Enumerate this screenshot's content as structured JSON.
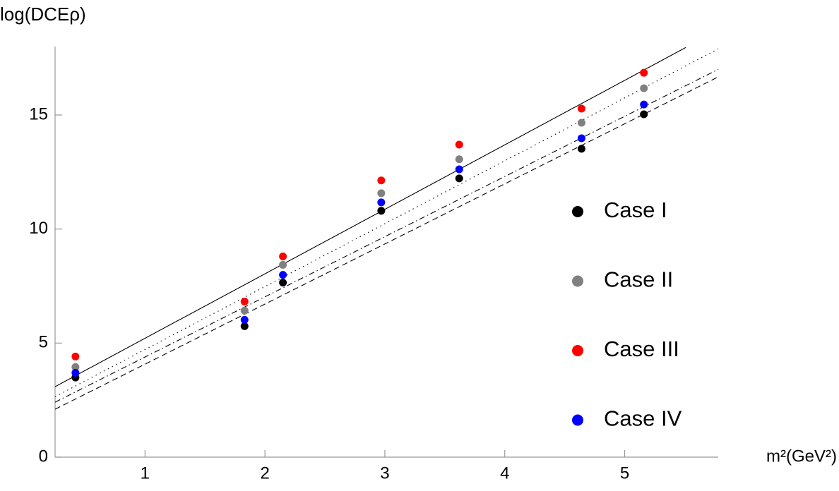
{
  "chart_data": {
    "type": "scatter",
    "ylabel": "log(DCEρ)",
    "xlabel": "m²(GeV²)",
    "xlim": [
      0.25,
      5.78
    ],
    "ylim": [
      0,
      18
    ],
    "xticks": [
      1,
      2,
      3,
      4,
      5
    ],
    "yticks": [
      0,
      5,
      10,
      15
    ],
    "x": [
      0.42,
      1.83,
      2.15,
      2.97,
      3.62,
      4.64,
      5.16
    ],
    "series": [
      {
        "name": "Case I",
        "color": "#000000",
        "values": [
          3.49,
          5.74,
          7.65,
          10.8,
          12.22,
          13.52,
          15.03
        ]
      },
      {
        "name": "Case II",
        "color": "#808080",
        "values": [
          3.95,
          6.42,
          8.43,
          11.57,
          13.06,
          14.66,
          16.17
        ]
      },
      {
        "name": "Case III",
        "color": "#ff0000",
        "values": [
          4.41,
          6.82,
          8.8,
          12.13,
          13.7,
          15.28,
          16.85
        ]
      },
      {
        "name": "Case IV",
        "color": "#0000ff",
        "values": [
          3.7,
          6.02,
          7.99,
          11.17,
          12.62,
          13.98,
          15.46
        ]
      }
    ],
    "lines": [
      {
        "style": "solid",
        "x": [
          0.25,
          5.51
        ],
        "y": [
          3.09,
          17.96
        ]
      },
      {
        "style": "dotted",
        "x": [
          0.25,
          5.78
        ],
        "y": [
          2.65,
          17.9
        ]
      },
      {
        "style": "dashdot",
        "x": [
          0.25,
          5.78
        ],
        "y": [
          2.41,
          17.0
        ]
      },
      {
        "style": "dashed",
        "x": [
          0.25,
          5.78
        ],
        "y": [
          2.1,
          16.67
        ]
      }
    ]
  }
}
